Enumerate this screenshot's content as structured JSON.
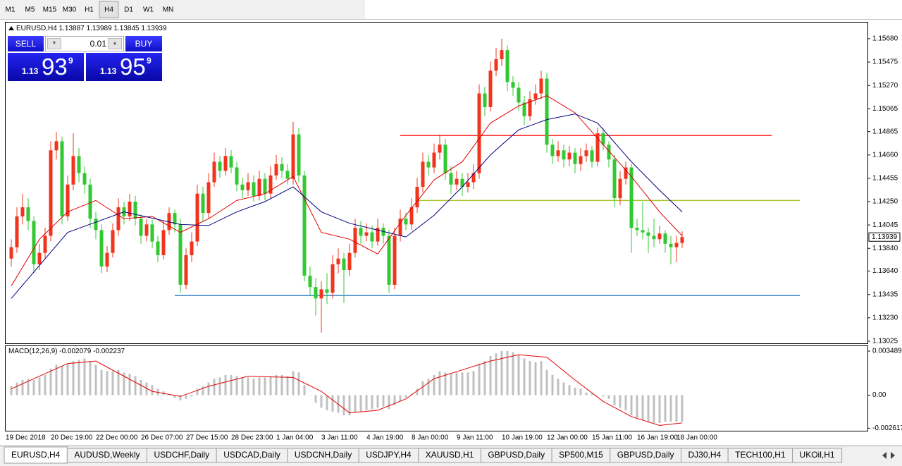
{
  "toolbar": {
    "timeframes": [
      "M1",
      "M5",
      "M15",
      "M30",
      "H1",
      "H4",
      "D1",
      "W1",
      "MN"
    ],
    "active": "H4"
  },
  "trade_panel": {
    "sell": "SELL",
    "buy": "BUY",
    "lots": 0.01,
    "bid": {
      "big": "1.13",
      "pips": "93",
      "point": "9"
    },
    "ask": {
      "big": "1.13",
      "pips": "95",
      "point": "9"
    }
  },
  "tabs": {
    "items": [
      "EURUSD,H4",
      "AUDUSD,Weekly",
      "USDCHF,Daily",
      "USDCAD,Daily",
      "USDCNH,Daily",
      "USDJPY,H4",
      "XAUUSD,H1",
      "GBPUSD,Daily",
      "SP500,M15",
      "GBPUSD,Daily",
      "DJ30,H4",
      "TECH100,H1",
      "UKOil,H1"
    ],
    "active": "EURUSD,H4"
  },
  "chart_data": [
    {
      "type": "candlestick",
      "title": "EURUSD,H4",
      "up_color": "#f0341e",
      "down_color": "#32c832",
      "categories": [
        "19 Dec 2018",
        null,
        null,
        null,
        null,
        null,
        null,
        null,
        "20 Dec 19:00",
        null,
        null,
        null,
        null,
        null,
        null,
        null,
        "22 Dec 00:00",
        null,
        null,
        null,
        null,
        null,
        null,
        null,
        "26 Dec 07:00",
        null,
        null,
        null,
        null,
        null,
        null,
        null,
        "27 Dec 15:00",
        null,
        null,
        null,
        null,
        null,
        null,
        null,
        "28 Dec 23:00",
        null,
        null,
        null,
        null,
        null,
        null,
        null,
        "1 Jan 04:00",
        null,
        null,
        null,
        null,
        null,
        null,
        null,
        "3 Jan 11:00",
        null,
        null,
        null,
        null,
        null,
        null,
        null,
        "4 Jan 19:00",
        null,
        null,
        null,
        null,
        null,
        null,
        null,
        "8 Jan 00:00",
        null,
        null,
        null,
        null,
        null,
        null,
        null,
        "9 Jan 11:00",
        null,
        null,
        null,
        null,
        null,
        null,
        null,
        "10 Jan 19:00",
        null,
        null,
        null,
        null,
        null,
        null,
        null,
        "12 Jan 00:00",
        null,
        null,
        null,
        null,
        null,
        null,
        null,
        "15 Jan 11:00",
        null,
        null,
        null,
        null,
        null,
        null,
        null,
        "16 Jan 19:00",
        null,
        null,
        null,
        null,
        null,
        null,
        "18 Jan 00:00"
      ],
      "open": [
        1.1375,
        1.1385,
        1.1412,
        1.142,
        1.1408,
        1.137,
        1.138,
        1.1395,
        1.147,
        1.1478,
        1.1412,
        1.144,
        1.1465,
        1.145,
        1.144,
        1.141,
        1.14,
        1.1368,
        1.138,
        1.14,
        1.142,
        1.1412,
        1.1425,
        1.141,
        1.1395,
        1.1405,
        1.139,
        1.1378,
        1.14,
        1.1415,
        1.1405,
        1.1352,
        1.1378,
        1.139,
        1.1432,
        1.1415,
        1.1442,
        1.146,
        1.1452,
        1.1465,
        1.1455,
        1.144,
        1.1435,
        1.1442,
        1.143,
        1.1445,
        1.1432,
        1.1448,
        1.1458,
        1.1452,
        1.1445,
        1.1484,
        1.1448,
        1.136,
        1.135,
        1.134,
        1.1348,
        1.1345,
        1.137,
        1.1375,
        1.1365,
        1.138,
        1.1402,
        1.1395,
        1.1398,
        1.139,
        1.1402,
        1.1395,
        1.1352,
        1.1395,
        1.141,
        1.1405,
        1.142,
        1.1438,
        1.146,
        1.1455,
        1.1468,
        1.1475,
        1.145,
        1.144,
        1.1445,
        1.1438,
        1.1442,
        1.145,
        1.152,
        1.1508,
        1.154,
        1.155,
        1.1558,
        1.153,
        1.1525,
        1.1512,
        1.15,
        1.1515,
        1.152,
        1.1533,
        1.1475,
        1.1465,
        1.147,
        1.1462,
        1.1468,
        1.1458,
        1.1465,
        1.147,
        1.146,
        1.1485,
        1.1475,
        1.1462,
        1.1428,
        1.1445,
        1.1455,
        1.1402,
        1.14,
        1.1398,
        1.1395,
        1.1392,
        1.1397,
        1.1388,
        1.1385,
        1.13887
      ],
      "high": [
        1.1392,
        1.142,
        1.1432,
        1.1428,
        1.1412,
        1.1388,
        1.1402,
        1.1478,
        1.1486,
        1.1482,
        1.1448,
        1.1485,
        1.1472,
        1.1456,
        1.1445,
        1.1416,
        1.1405,
        1.1386,
        1.1406,
        1.1428,
        1.1425,
        1.1432,
        1.143,
        1.1414,
        1.141,
        1.1409,
        1.1395,
        1.1408,
        1.142,
        1.1418,
        1.141,
        1.1384,
        1.1398,
        1.144,
        1.1438,
        1.145,
        1.1468,
        1.1465,
        1.1472,
        1.147,
        1.146,
        1.1446,
        1.145,
        1.1448,
        1.1452,
        1.145,
        1.1456,
        1.1466,
        1.1464,
        1.1458,
        1.1495,
        1.149,
        1.1452,
        1.1368,
        1.1358,
        1.1355,
        1.1362,
        1.1378,
        1.1384,
        1.138,
        1.1388,
        1.141,
        1.1408,
        1.1406,
        1.1404,
        1.141,
        1.1406,
        1.14,
        1.1402,
        1.1418,
        1.1415,
        1.1428,
        1.1446,
        1.1468,
        1.1466,
        1.1476,
        1.1484,
        1.148,
        1.1456,
        1.1452,
        1.145,
        1.145,
        1.1458,
        1.1528,
        1.1526,
        1.1548,
        1.156,
        1.1568,
        1.1562,
        1.1535,
        1.153,
        1.1518,
        1.1522,
        1.1528,
        1.154,
        1.1538,
        1.148,
        1.1478,
        1.1475,
        1.1474,
        1.1472,
        1.1472,
        1.1476,
        1.1474,
        1.149,
        1.149,
        1.1478,
        1.1466,
        1.1452,
        1.146,
        1.1458,
        1.141,
        1.1425,
        1.1402,
        1.141,
        1.1404,
        1.14,
        1.1395,
        1.1395,
        1.13989
      ],
      "low": [
        1.1368,
        1.138,
        1.1405,
        1.14,
        1.1362,
        1.1365,
        1.1375,
        1.139,
        1.1462,
        1.1405,
        1.1408,
        1.1435,
        1.1442,
        1.1432,
        1.1402,
        1.1392,
        1.1362,
        1.1363,
        1.1376,
        1.1395,
        1.1405,
        1.1408,
        1.1404,
        1.1388,
        1.139,
        1.1384,
        1.1372,
        1.1374,
        1.1396,
        1.1398,
        1.1345,
        1.1348,
        1.1372,
        1.1386,
        1.1408,
        1.141,
        1.1438,
        1.1446,
        1.1448,
        1.145,
        1.1434,
        1.1428,
        1.143,
        1.1425,
        1.1426,
        1.1426,
        1.1428,
        1.1444,
        1.1446,
        1.144,
        1.144,
        1.1442,
        1.1355,
        1.1343,
        1.1325,
        1.131,
        1.1335,
        1.134,
        1.1362,
        1.1336,
        1.136,
        1.1376,
        1.1388,
        1.139,
        1.1384,
        1.1386,
        1.1388,
        1.1345,
        1.1348,
        1.139,
        1.14,
        1.14,
        1.1415,
        1.1433,
        1.1448,
        1.145,
        1.1462,
        1.1444,
        1.1432,
        1.1435,
        1.143,
        1.1433,
        1.1436,
        1.1445,
        1.15,
        1.1504,
        1.1535,
        1.1544,
        1.1522,
        1.1518,
        1.1505,
        1.1492,
        1.1496,
        1.151,
        1.1515,
        1.1468,
        1.1458,
        1.146,
        1.1455,
        1.1456,
        1.145,
        1.1452,
        1.146,
        1.1455,
        1.1456,
        1.147,
        1.1455,
        1.142,
        1.1422,
        1.144,
        1.138,
        1.1395,
        1.1392,
        1.138,
        1.1385,
        1.1388,
        1.138,
        1.137,
        1.1372,
        1.13845
      ],
      "close": [
        1.1385,
        1.1412,
        1.142,
        1.1408,
        1.137,
        1.138,
        1.1395,
        1.147,
        1.1478,
        1.1412,
        1.144,
        1.1465,
        1.145,
        1.144,
        1.141,
        1.14,
        1.1368,
        1.138,
        1.14,
        1.142,
        1.1412,
        1.1425,
        1.141,
        1.1395,
        1.1405,
        1.139,
        1.1378,
        1.14,
        1.1415,
        1.1405,
        1.1352,
        1.1378,
        1.139,
        1.1432,
        1.1415,
        1.1442,
        1.146,
        1.1452,
        1.1465,
        1.1455,
        1.144,
        1.1435,
        1.1442,
        1.143,
        1.1445,
        1.1432,
        1.1448,
        1.1458,
        1.1452,
        1.1445,
        1.1484,
        1.1448,
        1.136,
        1.135,
        1.134,
        1.1348,
        1.1345,
        1.137,
        1.1375,
        1.1365,
        1.138,
        1.1402,
        1.1395,
        1.1398,
        1.139,
        1.1402,
        1.1395,
        1.1352,
        1.1395,
        1.141,
        1.1405,
        1.142,
        1.1438,
        1.146,
        1.1455,
        1.1468,
        1.1475,
        1.145,
        1.144,
        1.1445,
        1.1438,
        1.1442,
        1.145,
        1.152,
        1.1508,
        1.154,
        1.155,
        1.1558,
        1.153,
        1.1525,
        1.1512,
        1.15,
        1.1515,
        1.152,
        1.1533,
        1.1475,
        1.1465,
        1.147,
        1.1462,
        1.1468,
        1.1458,
        1.1465,
        1.147,
        1.146,
        1.1485,
        1.1475,
        1.1462,
        1.1428,
        1.1445,
        1.1455,
        1.1402,
        1.14,
        1.1398,
        1.1395,
        1.1392,
        1.1397,
        1.1388,
        1.1385,
        1.13887,
        1.13939
      ],
      "lines": [
        {
          "color": "#e00000",
          "x": [
            0,
            5,
            10,
            15,
            20,
            25,
            30,
            35,
            40,
            45,
            50,
            55,
            60,
            65,
            70,
            75,
            80,
            85,
            90,
            95,
            100,
            105,
            110,
            115,
            119
          ],
          "values": [
            1.1351,
            1.1392,
            1.1416,
            1.1426,
            1.141,
            1.1412,
            1.1398,
            1.141,
            1.1426,
            1.1432,
            1.1447,
            1.1398,
            1.1392,
            1.1379,
            1.1413,
            1.1444,
            1.146,
            1.1494,
            1.1509,
            1.1518,
            1.1503,
            1.1475,
            1.1447,
            1.1416,
            1.1395
          ]
        },
        {
          "color": "#000080",
          "x": [
            0,
            10,
            20,
            30,
            35,
            40,
            45,
            50,
            55,
            60,
            65,
            70,
            75,
            80,
            85,
            90,
            95,
            100,
            104,
            110,
            115,
            119
          ],
          "values": [
            1.134,
            1.1398,
            1.1416,
            1.1405,
            1.1404,
            1.1416,
            1.1425,
            1.1438,
            1.1416,
            1.1406,
            1.14,
            1.1394,
            1.1413,
            1.1438,
            1.1466,
            1.1488,
            1.1497,
            1.1502,
            1.1494,
            1.146,
            1.1435,
            1.1416
          ]
        }
      ],
      "levels": [
        {
          "value": 1.1483,
          "color": "#ff2a2a"
        },
        {
          "value": 1.1426,
          "color": "#a8c42a"
        },
        {
          "value": 1.13425,
          "color": "#3d8bd0"
        }
      ],
      "ylim": [
        1.13006,
        1.15822
      ],
      "yticks": [
        {
          "value": 1.13025,
          "label": "1.13025"
        },
        {
          "value": 1.1323,
          "label": "1.13230"
        },
        {
          "value": 1.13435,
          "label": "1.13435"
        },
        {
          "value": 1.1364,
          "label": "1.13640"
        },
        {
          "value": 1.1384,
          "label": "1.13840"
        },
        {
          "value": 1.14045,
          "label": "1.14045"
        },
        {
          "value": 1.1425,
          "label": "1.14250"
        },
        {
          "value": 1.14455,
          "label": "1.14455"
        },
        {
          "value": 1.1466,
          "label": "1.14660"
        },
        {
          "value": 1.14865,
          "label": "1.14865"
        },
        {
          "value": 1.15065,
          "label": "1.15065"
        },
        {
          "value": 1.1527,
          "label": "1.15270"
        },
        {
          "value": 1.15475,
          "label": "1.15475"
        },
        {
          "value": 1.1568,
          "label": "1.15680"
        }
      ]
    },
    {
      "type": "macd",
      "title": "MACD(12,26,9)",
      "readout": [
        -0.002079,
        -0.002237
      ],
      "histogram_color": "#c0c0c0",
      "signal_color": "#e00000",
      "histogram": [
        0.0007,
        0.001,
        0.0012,
        0.0013,
        0.0012,
        0.0014,
        0.0016,
        0.0021,
        0.0024,
        0.0023,
        0.0025,
        0.0027,
        0.0028,
        0.0029,
        0.0027,
        0.0024,
        0.002,
        0.0019,
        0.0019,
        0.002,
        0.0018,
        0.0017,
        0.0015,
        0.0012,
        0.001,
        0.0008,
        0.0005,
        0.0003,
        0.0001,
        -0.0002,
        -0.0004,
        -0.0003,
        -0.0001,
        0.0005,
        0.0007,
        0.001,
        0.0013,
        0.0014,
        0.0016,
        0.0016,
        0.0015,
        0.0014,
        0.0014,
        0.0013,
        0.0014,
        0.0014,
        0.0015,
        0.0016,
        0.0016,
        0.0015,
        0.0019,
        0.0018,
        0.0008,
        0.0,
        -0.0006,
        -0.001,
        -0.0012,
        -0.0013,
        -0.0014,
        -0.0016,
        -0.0016,
        -0.0014,
        -0.0013,
        -0.0012,
        -0.0011,
        -0.001,
        -0.0009,
        -0.0011,
        -0.0008,
        -0.0005,
        -0.0002,
        0.0001,
        0.0005,
        0.0011,
        0.0013,
        0.0016,
        0.0019,
        0.0018,
        0.0017,
        0.0018,
        0.0018,
        0.0018,
        0.0019,
        0.0025,
        0.0027,
        0.0031,
        0.0033,
        0.0035,
        0.0035,
        0.0034,
        0.0032,
        0.0029,
        0.0027,
        0.0026,
        0.0027,
        0.002,
        0.0016,
        0.0013,
        0.001,
        0.0008,
        0.0006,
        0.0005,
        0.0002,
        0.0001,
        0.0,
        -0.0001,
        -0.0003,
        -0.0008,
        -0.001,
        -0.0012,
        -0.0016,
        -0.0018,
        -0.002,
        -0.0021,
        -0.0022,
        -0.0022,
        -0.0021,
        -0.0021,
        -0.0021,
        -0.0021
      ],
      "signal_x": [
        0,
        10,
        15,
        20,
        25,
        30,
        35,
        42,
        50,
        55,
        60,
        65,
        70,
        75,
        80,
        85,
        90,
        95,
        100,
        105,
        110,
        115,
        119
      ],
      "signal": [
        0.0005,
        0.0025,
        0.0027,
        0.0015,
        0.0003,
        -0.0001,
        0.0007,
        0.0015,
        0.0014,
        0.0003,
        -0.0014,
        -0.0012,
        -0.0003,
        0.0013,
        0.002,
        0.0027,
        0.0032,
        0.003,
        0.0012,
        -0.0005,
        -0.0017,
        -0.0024,
        -0.0022
      ],
      "ylim": [
        -0.00282,
        0.00388
      ],
      "yticks": [
        0.003489,
        {
          "value": 0,
          "label": "0.00"
        },
        -0.002617
      ]
    }
  ]
}
